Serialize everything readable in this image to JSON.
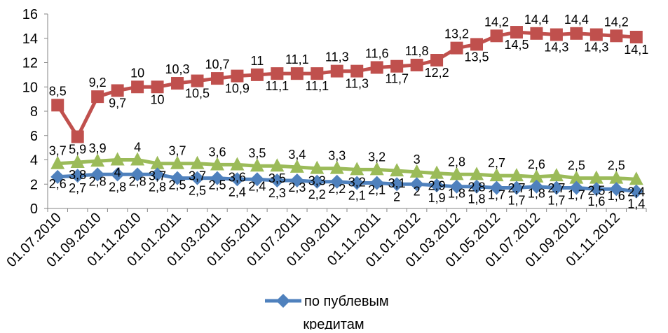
{
  "chart_data": {
    "type": "line",
    "title": "",
    "xlabel": "",
    "ylabel": "",
    "ylim": [
      0,
      16
    ],
    "y_ticks": [
      0,
      2,
      4,
      6,
      8,
      10,
      12,
      14,
      16
    ],
    "grid": false,
    "legend_position": "bottom",
    "x": [
      "01.07.2010",
      "01.08.2010",
      "01.09.2010",
      "01.10.2010",
      "01.11.2010",
      "01.12.2010",
      "01.01.2011",
      "01.02.2011",
      "01.03.2011",
      "01.04.2011",
      "01.05.2011",
      "01.06.2011",
      "01.07.2011",
      "01.08.2011",
      "01.09.2011",
      "01.10.2011",
      "01.11.2011",
      "01.12.2011",
      "01.01.2012",
      "01.02.2012",
      "01.03.2012",
      "01.04.2012",
      "01.05.2012",
      "01.06.2012",
      "01.07.2012",
      "01.08.2012",
      "01.09.2012",
      "01.10.2012",
      "01.11.2012",
      "01.12.2012"
    ],
    "x_tick_labels": [
      "01.07.2010",
      "01.09.2010",
      "01.11.2010",
      "01.01.2011",
      "01.03.2011",
      "01.05.2011",
      "01.07.2011",
      "01.09.2011",
      "01.11.2011",
      "01.01.2012",
      "01.03.2012",
      "01.05.2012",
      "01.07.2012",
      "01.09.2012",
      "01.11.2012"
    ],
    "series": [
      {
        "name": "",
        "color": "#C0504D",
        "marker": "square",
        "values": [
          8.5,
          5.9,
          9.2,
          9.7,
          10,
          10,
          10.3,
          10.5,
          10.7,
          10.9,
          11,
          11.1,
          11.1,
          11.1,
          11.3,
          11.3,
          11.6,
          11.7,
          11.8,
          12.2,
          13.2,
          13.5,
          14.2,
          14.5,
          14.4,
          14.3,
          14.4,
          14.3,
          14.2,
          14.1
        ],
        "labels": [
          "8,5",
          "5,9",
          "9,2",
          "9,7",
          "10",
          "10",
          "10,3",
          "10,5",
          "10,7",
          "10,9",
          "11",
          "11,1",
          "11,1",
          "11,1",
          "11,3",
          "11,3",
          "11,6",
          "11,7",
          "11,8",
          "12,2",
          "13,2",
          "13,5",
          "14,2",
          "14,5",
          "14,4",
          "14,3",
          "14,4",
          "14,3",
          "14,2",
          "14,1"
        ]
      },
      {
        "name": "",
        "color": "#9BBB59",
        "marker": "triangle",
        "values": [
          3.7,
          3.8,
          3.9,
          4,
          4,
          3.7,
          3.7,
          3.7,
          3.6,
          3.6,
          3.5,
          3.5,
          3.4,
          3.3,
          3.3,
          3.2,
          3.2,
          3.1,
          3,
          2.9,
          2.8,
          2.8,
          2.7,
          2.7,
          2.6,
          2.7,
          2.5,
          2.5,
          2.5,
          2.4
        ],
        "labels": [
          "3,7",
          "3,8",
          "3,9",
          "4",
          "4",
          "3,7",
          "3,7",
          "3,7",
          "3,6",
          "3,6",
          "3,5",
          "3,5",
          "3,4",
          "3,3",
          "3,3",
          "3,2",
          "3,2",
          "3,1",
          "3",
          "2,9",
          "2,8",
          "2,8",
          "2,7",
          "2,7",
          "2,6",
          "2,7",
          "2,5",
          "2,5",
          "2,5",
          "2,4"
        ]
      },
      {
        "name": "по публевым кредитам",
        "color": "#4F81BD",
        "marker": "diamond",
        "values": [
          2.6,
          2.7,
          2.8,
          2.8,
          2.8,
          2.8,
          2.5,
          2.5,
          2.5,
          2.4,
          2.4,
          2.3,
          2.3,
          2.2,
          2.2,
          2.1,
          2.1,
          2,
          2,
          1.9,
          1.8,
          1.8,
          1.7,
          1.7,
          1.8,
          1.7,
          1.7,
          1.6,
          1.6,
          1.4
        ],
        "labels": [
          "2,6",
          "2,7",
          "2,8",
          "2,8",
          "2,8",
          "2,8",
          "2,5",
          "2,5",
          "2,5",
          "2,4",
          "2,4",
          "2,3",
          "2,3",
          "2,2",
          "2,2",
          "2,1",
          "2,1",
          "2",
          "2",
          "1,9",
          "1,8",
          "1,8",
          "1,7",
          "1,7",
          "1,8",
          "1,7",
          "1,7",
          "1,6",
          "1,6",
          "1,4"
        ]
      }
    ],
    "legend": {
      "entries": [
        {
          "line1": "по публевым",
          "line2": "кредитам",
          "series_index": 2
        }
      ]
    }
  }
}
